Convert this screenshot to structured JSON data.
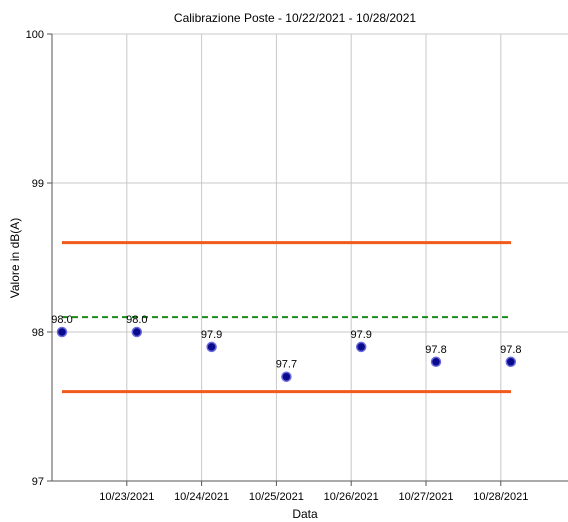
{
  "chart_data": {
    "type": "scatter",
    "title": "Calibrazione Poste - 10/22/2021 - 10/28/2021",
    "xlabel": "Data",
    "ylabel": "Valore in dB(A)",
    "x_tick_labels": [
      "10/23/2021",
      "10/24/2021",
      "10/25/2021",
      "10/26/2021",
      "10/27/2021",
      "10/28/2021"
    ],
    "y_ticks": [
      "97",
      "98",
      "99",
      "100"
    ],
    "ylim": [
      97,
      100
    ],
    "grid": true,
    "series": [
      {
        "type": "scatter",
        "color": "#0a0a8c",
        "x": [
          "10/22/2021",
          "10/23/2021",
          "10/24/2021",
          "10/25/2021",
          "10/26/2021",
          "10/27/2021",
          "10/28/2021"
        ],
        "values": [
          98.0,
          98.0,
          97.9,
          97.7,
          97.9,
          97.8,
          97.8
        ],
        "labels": [
          "98.0",
          "98.0",
          "97.9",
          "97.7",
          "97.9",
          "97.8",
          "97.8"
        ]
      },
      {
        "type": "line",
        "color": "#f05a1a",
        "style": "solid",
        "values": [
          98.6,
          98.6
        ]
      },
      {
        "type": "line",
        "color": "#1a8a1a",
        "style": "dashed",
        "values": [
          98.1,
          98.1
        ]
      },
      {
        "type": "line",
        "color": "#f05a1a",
        "style": "solid",
        "values": [
          97.6,
          97.6
        ]
      }
    ]
  }
}
